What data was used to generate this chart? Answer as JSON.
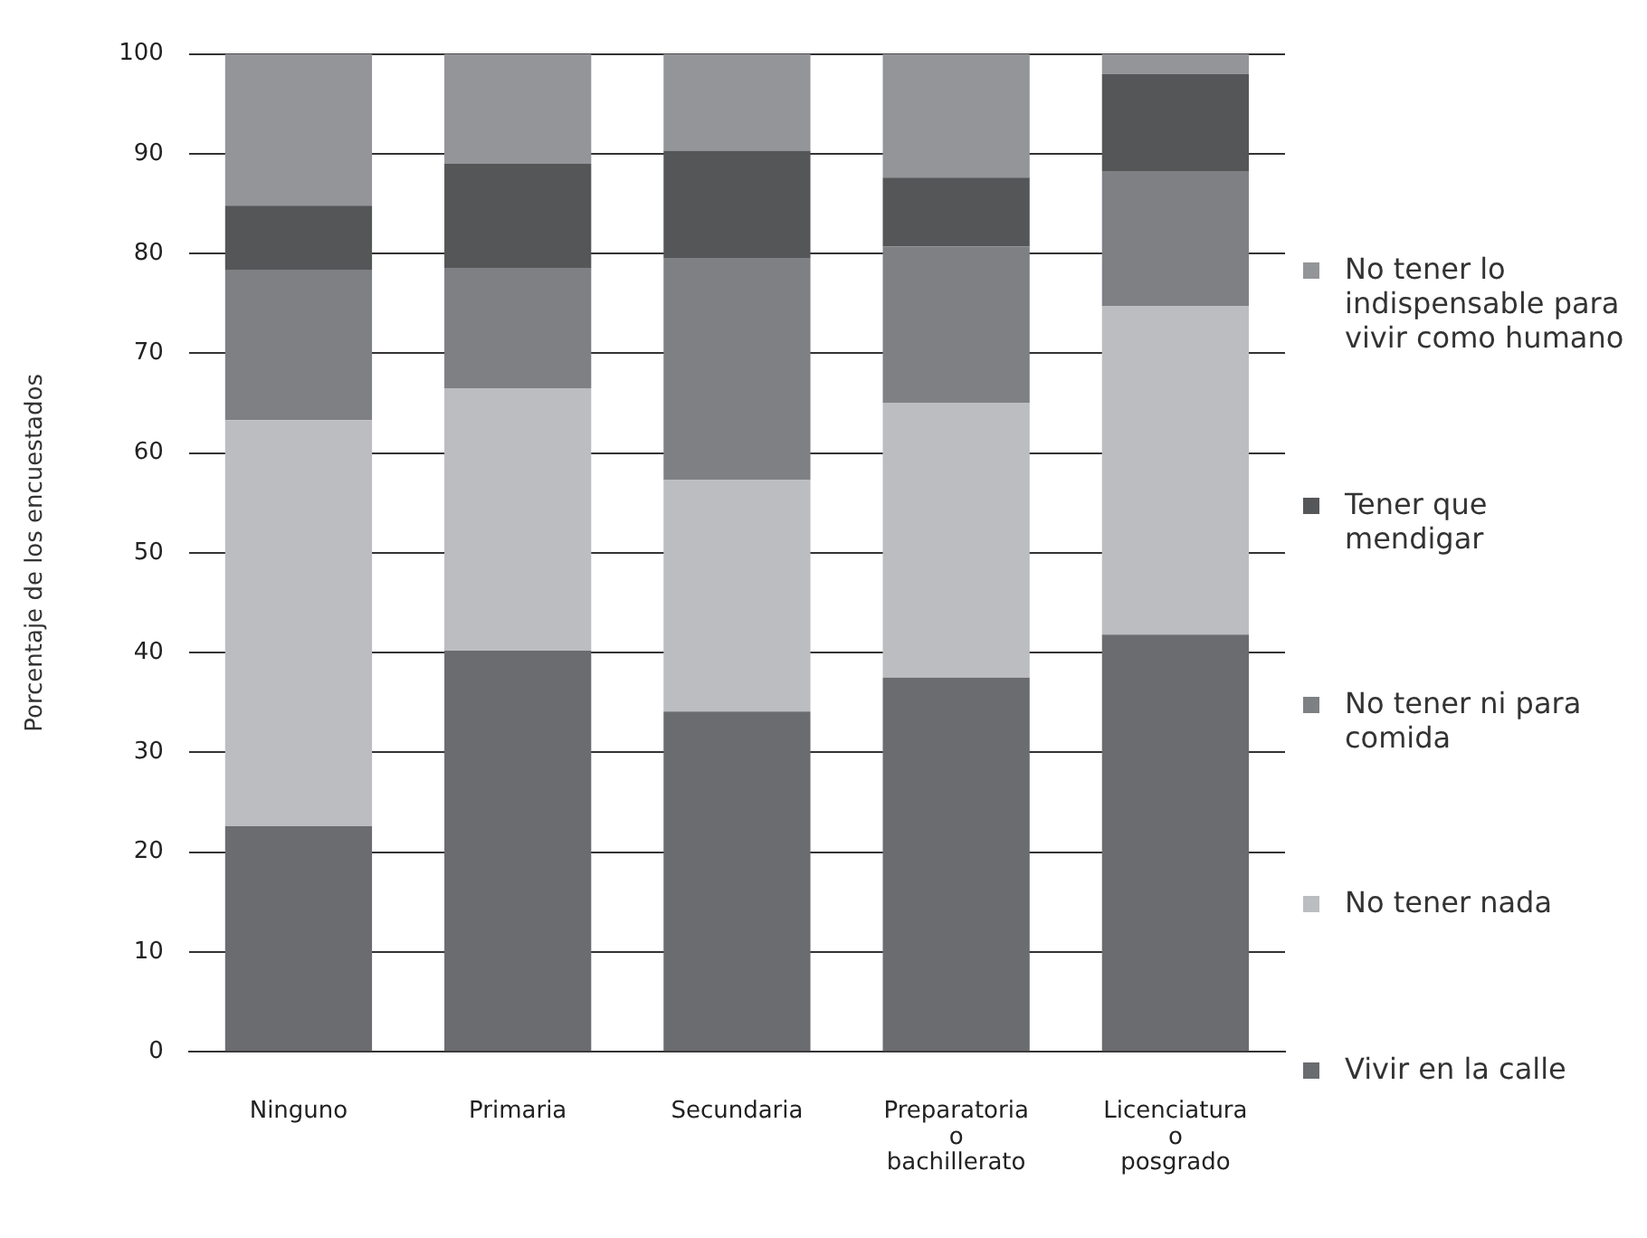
{
  "chart_data": {
    "type": "bar",
    "stacked": true,
    "ylabel": "Porcentaje de los encuestados",
    "categories": [
      "Ninguno",
      "Primaria",
      "Secundaria",
      "Preparatoria o bachillerato",
      "Licenciatura o posgrado"
    ],
    "series": [
      {
        "name": "Vivir en la calle",
        "color": "#6b6c70",
        "values": [
          22.6,
          40.2,
          34.1,
          37.5,
          41.8
        ]
      },
      {
        "name": "No tener nada",
        "color": "#bcbdc1",
        "values": [
          40.7,
          26.3,
          23.2,
          27.5,
          32.9
        ]
      },
      {
        "name": "No tener ni para comida",
        "color": "#7f8084",
        "values": [
          15.0,
          12.0,
          22.2,
          15.7,
          13.5
        ]
      },
      {
        "name": "Tener que mendigar",
        "color": "#555658",
        "values": [
          6.5,
          10.5,
          10.8,
          6.9,
          9.8
        ]
      },
      {
        "name": "No tener lo indispensable para vivir como humano",
        "color": "#949599",
        "values": [
          15.2,
          11.0,
          9.7,
          12.4,
          2.0
        ]
      }
    ],
    "ylim": [
      0,
      100
    ],
    "yticks": [
      0,
      10,
      20,
      30,
      40,
      50,
      60,
      70,
      80,
      90,
      100
    ],
    "grid": "y",
    "legend": "right"
  }
}
